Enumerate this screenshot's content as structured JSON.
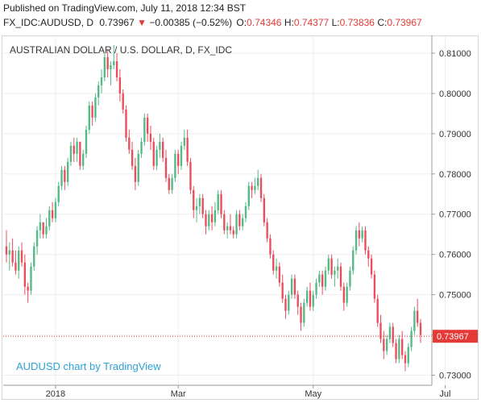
{
  "header": {
    "published": "Published on TradingView.com, July 11, 2018 12:34 BST",
    "symbol": "FX_IDC:AUDUSD, D",
    "last": "0.73967",
    "change_arrow": "▼",
    "change": "−0.00385 (−0.52%)",
    "o_label": "O:",
    "o_value": "0.74346",
    "h_label": "H:",
    "h_value": "0.74377",
    "l_label": "L:",
    "l_value": "0.73836",
    "c_label": "C:",
    "c_value": "0.73967"
  },
  "colors": {
    "up": "#53b987",
    "down": "#eb4d5c",
    "grid": "#eeeeee",
    "price_line": "#e53935",
    "price_tag": "#e53935",
    "watermark": "#2ea0d6"
  },
  "chart_data": {
    "type": "candlestick",
    "title": "AUSTRALIAN DOLLAR / U.S. DOLLAR, D, FX_IDC",
    "watermark": "AUDUSD chart by TradingView",
    "ylim": [
      0.7275,
      0.814
    ],
    "y_ticks": [
      "0.81000",
      "0.80000",
      "0.79000",
      "0.78000",
      "0.77000",
      "0.76000",
      "0.75000",
      "0.74000",
      "0.73000"
    ],
    "x_ticks": [
      {
        "label": "2018",
        "index": 16
      },
      {
        "label": "Mar",
        "index": 56
      },
      {
        "label": "May",
        "index": 100
      },
      {
        "label": "Jul",
        "index": 143
      }
    ],
    "last_price": "0.73967",
    "last_value": 0.73967,
    "candles": [
      [
        0.762,
        0.766,
        0.758,
        0.76
      ],
      [
        0.76,
        0.763,
        0.756,
        0.761
      ],
      [
        0.761,
        0.764,
        0.757,
        0.758
      ],
      [
        0.758,
        0.761,
        0.755,
        0.756
      ],
      [
        0.756,
        0.762,
        0.754,
        0.761
      ],
      [
        0.761,
        0.763,
        0.757,
        0.758
      ],
      [
        0.758,
        0.76,
        0.75,
        0.752
      ],
      [
        0.752,
        0.753,
        0.748,
        0.751
      ],
      [
        0.751,
        0.758,
        0.75,
        0.757
      ],
      [
        0.757,
        0.763,
        0.756,
        0.762
      ],
      [
        0.762,
        0.767,
        0.76,
        0.766
      ],
      [
        0.766,
        0.77,
        0.764,
        0.768
      ],
      [
        0.768,
        0.768,
        0.764,
        0.765
      ],
      [
        0.765,
        0.769,
        0.764,
        0.767
      ],
      [
        0.767,
        0.772,
        0.766,
        0.771
      ],
      [
        0.771,
        0.773,
        0.768,
        0.769
      ],
      [
        0.769,
        0.774,
        0.768,
        0.773
      ],
      [
        0.773,
        0.778,
        0.772,
        0.777
      ],
      [
        0.777,
        0.782,
        0.776,
        0.781
      ],
      [
        0.781,
        0.782,
        0.776,
        0.778
      ],
      [
        0.778,
        0.784,
        0.777,
        0.783
      ],
      [
        0.783,
        0.788,
        0.782,
        0.787
      ],
      [
        0.787,
        0.789,
        0.783,
        0.785
      ],
      [
        0.785,
        0.789,
        0.783,
        0.788
      ],
      [
        0.788,
        0.788,
        0.781,
        0.782
      ],
      [
        0.782,
        0.786,
        0.781,
        0.785
      ],
      [
        0.785,
        0.792,
        0.784,
        0.791
      ],
      [
        0.791,
        0.798,
        0.79,
        0.797
      ],
      [
        0.797,
        0.798,
        0.792,
        0.794
      ],
      [
        0.794,
        0.8,
        0.793,
        0.799
      ],
      [
        0.799,
        0.803,
        0.797,
        0.802
      ],
      [
        0.802,
        0.806,
        0.8,
        0.804
      ],
      [
        0.804,
        0.81,
        0.803,
        0.809
      ],
      [
        0.809,
        0.811,
        0.804,
        0.806
      ],
      [
        0.806,
        0.808,
        0.802,
        0.807
      ],
      [
        0.807,
        0.812,
        0.806,
        0.808
      ],
      [
        0.808,
        0.81,
        0.803,
        0.804
      ],
      [
        0.804,
        0.806,
        0.798,
        0.8
      ],
      [
        0.8,
        0.801,
        0.795,
        0.796
      ],
      [
        0.796,
        0.797,
        0.788,
        0.789
      ],
      [
        0.789,
        0.791,
        0.785,
        0.786
      ],
      [
        0.786,
        0.788,
        0.781,
        0.782
      ],
      [
        0.782,
        0.784,
        0.776,
        0.778
      ],
      [
        0.778,
        0.786,
        0.777,
        0.785
      ],
      [
        0.785,
        0.789,
        0.784,
        0.788
      ],
      [
        0.788,
        0.795,
        0.787,
        0.794
      ],
      [
        0.794,
        0.795,
        0.788,
        0.79
      ],
      [
        0.79,
        0.792,
        0.786,
        0.788
      ],
      [
        0.788,
        0.789,
        0.781,
        0.782
      ],
      [
        0.782,
        0.787,
        0.781,
        0.786
      ],
      [
        0.786,
        0.79,
        0.784,
        0.788
      ],
      [
        0.788,
        0.789,
        0.783,
        0.784
      ],
      [
        0.784,
        0.786,
        0.778,
        0.779
      ],
      [
        0.779,
        0.78,
        0.775,
        0.776
      ],
      [
        0.776,
        0.78,
        0.775,
        0.779
      ],
      [
        0.779,
        0.786,
        0.778,
        0.785
      ],
      [
        0.785,
        0.786,
        0.78,
        0.782
      ],
      [
        0.782,
        0.788,
        0.781,
        0.787
      ],
      [
        0.787,
        0.791,
        0.786,
        0.789
      ],
      [
        0.789,
        0.791,
        0.782,
        0.783
      ],
      [
        0.783,
        0.784,
        0.775,
        0.776
      ],
      [
        0.776,
        0.777,
        0.769,
        0.771
      ],
      [
        0.771,
        0.774,
        0.768,
        0.772
      ],
      [
        0.772,
        0.775,
        0.77,
        0.774
      ],
      [
        0.774,
        0.775,
        0.769,
        0.77
      ],
      [
        0.77,
        0.771,
        0.765,
        0.767
      ],
      [
        0.767,
        0.771,
        0.766,
        0.77
      ],
      [
        0.77,
        0.772,
        0.766,
        0.768
      ],
      [
        0.768,
        0.773,
        0.767,
        0.771
      ],
      [
        0.771,
        0.776,
        0.77,
        0.775
      ],
      [
        0.775,
        0.776,
        0.769,
        0.77
      ],
      [
        0.77,
        0.771,
        0.765,
        0.766
      ],
      [
        0.766,
        0.768,
        0.764,
        0.767
      ],
      [
        0.767,
        0.77,
        0.765,
        0.766
      ],
      [
        0.766,
        0.767,
        0.764,
        0.765
      ],
      [
        0.765,
        0.771,
        0.764,
        0.77
      ],
      [
        0.77,
        0.771,
        0.766,
        0.767
      ],
      [
        0.767,
        0.77,
        0.766,
        0.769
      ],
      [
        0.769,
        0.773,
        0.768,
        0.772
      ],
      [
        0.772,
        0.778,
        0.771,
        0.777
      ],
      [
        0.777,
        0.778,
        0.774,
        0.776
      ],
      [
        0.776,
        0.779,
        0.775,
        0.777
      ],
      [
        0.777,
        0.781,
        0.776,
        0.779
      ],
      [
        0.779,
        0.78,
        0.773,
        0.774
      ],
      [
        0.774,
        0.775,
        0.767,
        0.768
      ],
      [
        0.768,
        0.769,
        0.763,
        0.764
      ],
      [
        0.764,
        0.765,
        0.759,
        0.76
      ],
      [
        0.76,
        0.761,
        0.755,
        0.756
      ],
      [
        0.756,
        0.759,
        0.754,
        0.757
      ],
      [
        0.757,
        0.758,
        0.752,
        0.753
      ],
      [
        0.753,
        0.755,
        0.748,
        0.749
      ],
      [
        0.749,
        0.75,
        0.744,
        0.746
      ],
      [
        0.746,
        0.751,
        0.745,
        0.75
      ],
      [
        0.75,
        0.755,
        0.749,
        0.754
      ],
      [
        0.754,
        0.755,
        0.749,
        0.75
      ],
      [
        0.75,
        0.751,
        0.745,
        0.747
      ],
      [
        0.747,
        0.748,
        0.741,
        0.743
      ],
      [
        0.743,
        0.749,
        0.742,
        0.748
      ],
      [
        0.748,
        0.752,
        0.747,
        0.751
      ],
      [
        0.751,
        0.753,
        0.746,
        0.747
      ],
      [
        0.747,
        0.751,
        0.746,
        0.75
      ],
      [
        0.75,
        0.754,
        0.749,
        0.753
      ],
      [
        0.753,
        0.756,
        0.752,
        0.755
      ],
      [
        0.755,
        0.756,
        0.75,
        0.752
      ],
      [
        0.752,
        0.757,
        0.751,
        0.756
      ],
      [
        0.756,
        0.76,
        0.755,
        0.759
      ],
      [
        0.759,
        0.76,
        0.754,
        0.755
      ],
      [
        0.755,
        0.757,
        0.752,
        0.756
      ],
      [
        0.756,
        0.759,
        0.754,
        0.757
      ],
      [
        0.757,
        0.758,
        0.751,
        0.752
      ],
      [
        0.752,
        0.753,
        0.746,
        0.748
      ],
      [
        0.748,
        0.753,
        0.747,
        0.752
      ],
      [
        0.752,
        0.757,
        0.751,
        0.756
      ],
      [
        0.756,
        0.762,
        0.755,
        0.761
      ],
      [
        0.761,
        0.767,
        0.76,
        0.766
      ],
      [
        0.766,
        0.768,
        0.762,
        0.764
      ],
      [
        0.764,
        0.767,
        0.763,
        0.766
      ],
      [
        0.766,
        0.767,
        0.76,
        0.761
      ],
      [
        0.761,
        0.762,
        0.757,
        0.759
      ],
      [
        0.759,
        0.76,
        0.754,
        0.755
      ],
      [
        0.755,
        0.756,
        0.748,
        0.749
      ],
      [
        0.749,
        0.75,
        0.742,
        0.743
      ],
      [
        0.743,
        0.745,
        0.738,
        0.739
      ],
      [
        0.739,
        0.741,
        0.734,
        0.736
      ],
      [
        0.736,
        0.74,
        0.735,
        0.739
      ],
      [
        0.739,
        0.743,
        0.738,
        0.742
      ],
      [
        0.742,
        0.743,
        0.737,
        0.738
      ],
      [
        0.738,
        0.739,
        0.733,
        0.734
      ],
      [
        0.734,
        0.74,
        0.733,
        0.739
      ],
      [
        0.739,
        0.741,
        0.734,
        0.735
      ],
      [
        0.735,
        0.736,
        0.731,
        0.733
      ],
      [
        0.733,
        0.738,
        0.732,
        0.737
      ],
      [
        0.737,
        0.742,
        0.736,
        0.741
      ],
      [
        0.741,
        0.747,
        0.74,
        0.746
      ],
      [
        0.746,
        0.749,
        0.742,
        0.743
      ],
      [
        0.743,
        0.744,
        0.738,
        0.74
      ]
    ]
  }
}
